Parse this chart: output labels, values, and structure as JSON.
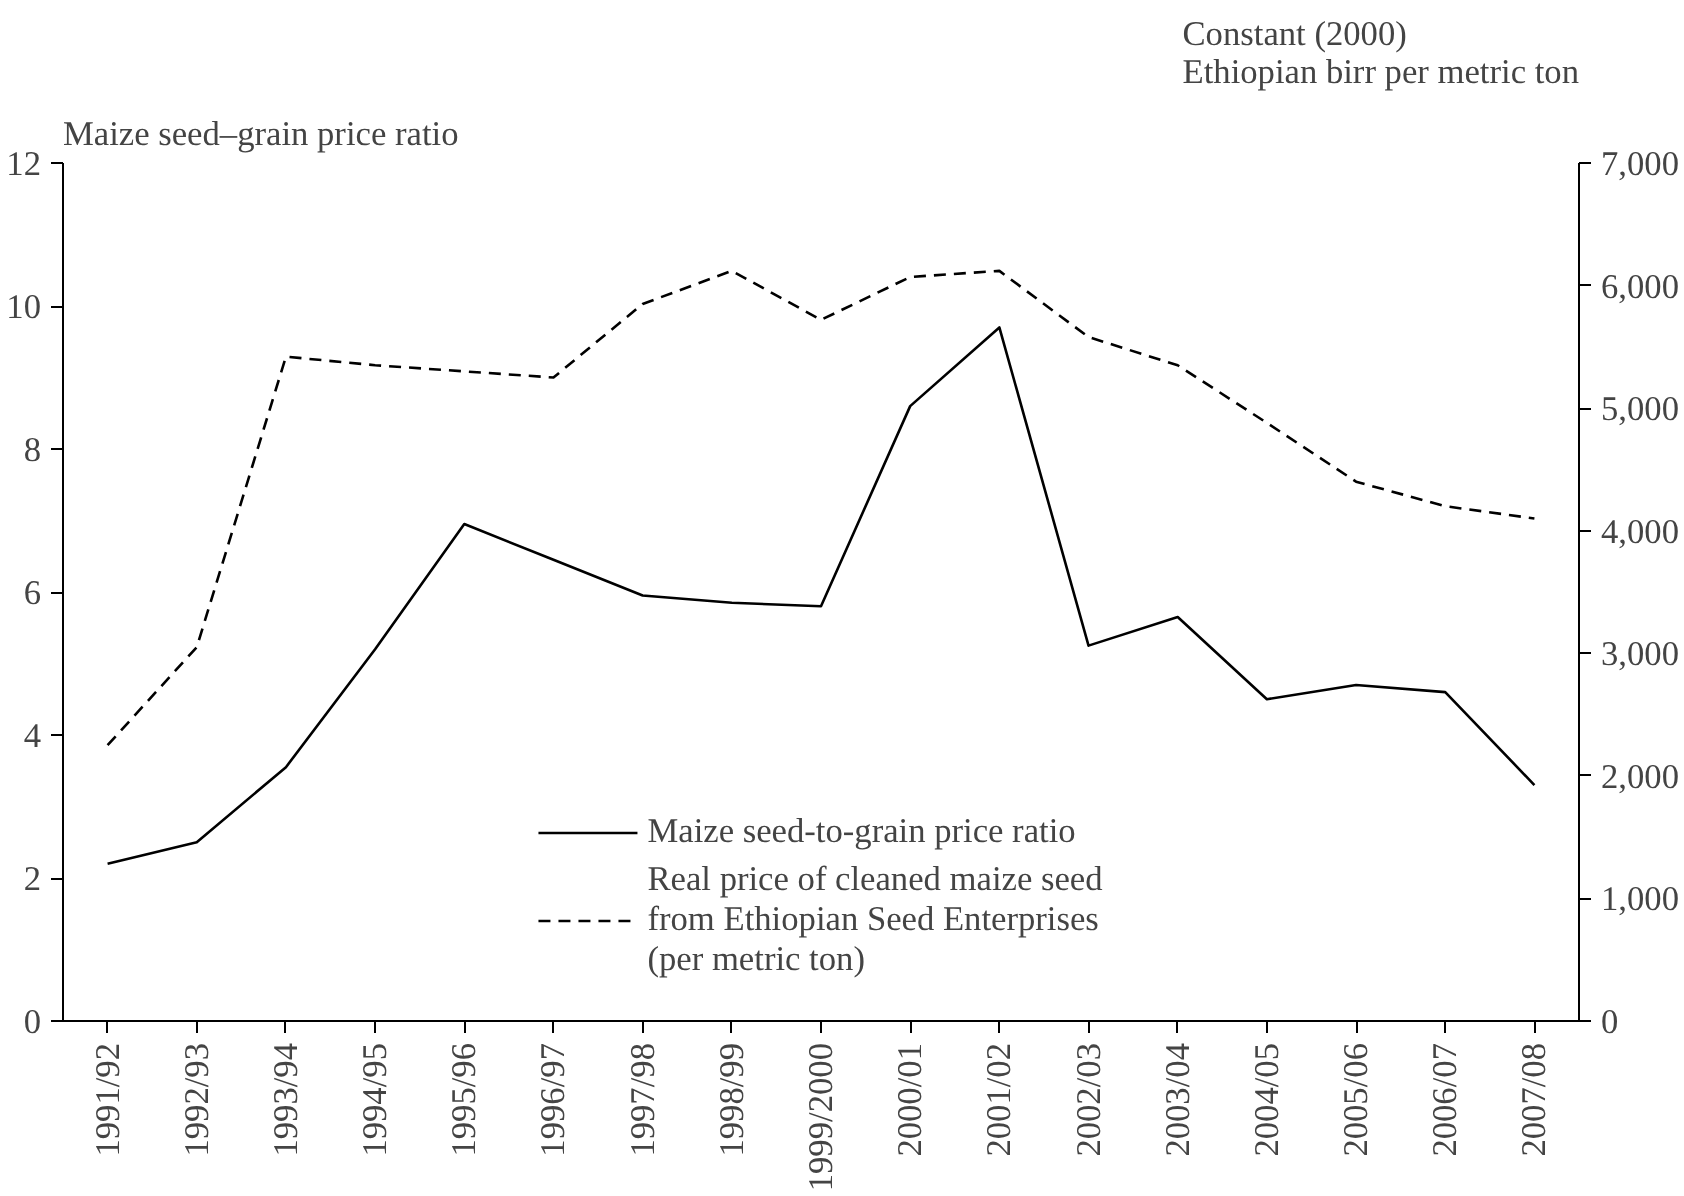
{
  "chart_data": {
    "type": "line",
    "ylabel": "Maize seed–grain price ratio",
    "y2label": "Constant (2000)\nEthiopian birr per metric ton",
    "categories": [
      "1991/92",
      "1992/93",
      "1993/94",
      "1994/95",
      "1995/96",
      "1996/97",
      "1997/98",
      "1998/99",
      "1999/2000",
      "2000/01",
      "2001/02",
      "2002/03",
      "2003/04",
      "2004/05",
      "2005/06",
      "2006/07",
      "2007/08"
    ],
    "series": [
      {
        "name": "Maize seed-to-grain price ratio",
        "color": "#000000",
        "line_style": "solid",
        "values": [
          2.2,
          2.5,
          3.55,
          5.2,
          6.95,
          6.45,
          5.95,
          5.85,
          5.8,
          8.6,
          9.7,
          5.25,
          5.65,
          4.5,
          4.7,
          4.6,
          3.3
        ]
      },
      {
        "name": "Real price of cleaned maize seed\nfrom Ethiopian Seed Enterprises\n(per metric ton)",
        "color": "#000000",
        "line_style": "dashed",
        "axis": "y2",
        "values": [
          2250,
          3050,
          5420,
          5350,
          5300,
          5250,
          5850,
          6120,
          5720,
          6070,
          6120,
          5580,
          5350,
          4880,
          4400,
          4200,
          4100
        ]
      }
    ],
    "ylim": [
      0,
      12
    ],
    "yticks": [
      0,
      2,
      4,
      6,
      8,
      10,
      12
    ],
    "y2lim": [
      0,
      7000
    ],
    "y2ticks": [
      {
        "value": 0,
        "label": "0"
      },
      {
        "value": 1000,
        "label": "1,000"
      },
      {
        "value": 2000,
        "label": "2,000"
      },
      {
        "value": 3000,
        "label": "3,000"
      },
      {
        "value": 4000,
        "label": "4,000"
      },
      {
        "value": 5000,
        "label": "5,000"
      },
      {
        "value": 6000,
        "label": "6,000"
      },
      {
        "value": 7000,
        "label": "7,000"
      }
    ],
    "grid": false,
    "legend": "bottom"
  }
}
